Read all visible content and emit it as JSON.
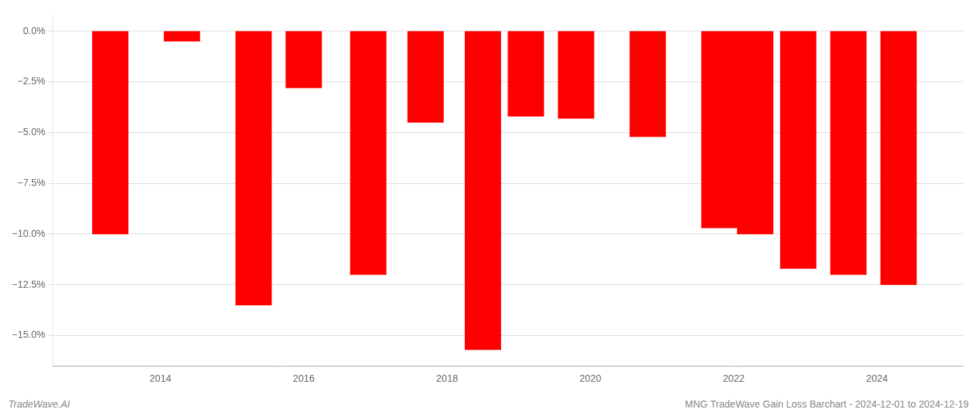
{
  "chart_data": {
    "type": "bar",
    "x": [
      2013.3,
      2014.3,
      2015.3,
      2016.0,
      2016.9,
      2017.7,
      2018.5,
      2019.1,
      2019.8,
      2020.8,
      2021.8,
      2022.3,
      2022.9,
      2023.6,
      2024.3
    ],
    "values": [
      -10.0,
      -0.5,
      -13.5,
      -2.8,
      -12.0,
      -4.5,
      -15.7,
      -4.2,
      -4.3,
      -5.2,
      -9.7,
      -10.0,
      -11.7,
      -12.0,
      -12.5
    ],
    "color": "#ff0000",
    "xlim": [
      2012.5,
      2025.2
    ],
    "xticks": [
      2014,
      2016,
      2018,
      2020,
      2022,
      2024
    ],
    "ylim": [
      -16.5,
      0.8
    ],
    "yticks": [
      {
        "value": 0.0,
        "label": "0.0%"
      },
      {
        "value": -2.5,
        "label": "−2.5%"
      },
      {
        "value": -5.0,
        "label": "−5.0%"
      },
      {
        "value": -7.5,
        "label": "−7.5%"
      },
      {
        "value": -10.0,
        "label": "−10.0%"
      },
      {
        "value": -12.5,
        "label": "−12.5%"
      },
      {
        "value": -15.0,
        "label": "−15.0%"
      }
    ],
    "grid": true,
    "annotations": [
      "TradeWave.AI",
      "MNG TradeWave Gain Loss Barchart - 2024-12-01 to 2024-12-19"
    ]
  }
}
